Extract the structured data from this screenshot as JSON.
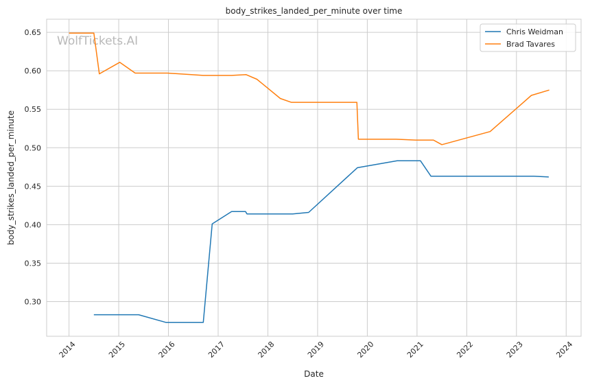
{
  "chart_data": {
    "type": "line",
    "title": "body_strikes_landed_per_minute over time",
    "xlabel": "Date",
    "ylabel": "body_strikes_landed_per_minute",
    "watermark": "WolfTickets.AI",
    "xlim": [
      2013.55,
      2024.3
    ],
    "ylim": [
      0.255,
      0.667
    ],
    "x_ticks": [
      2014,
      2015,
      2016,
      2017,
      2018,
      2019,
      2020,
      2021,
      2022,
      2023,
      2024
    ],
    "x_tick_labels": [
      "2014",
      "2015",
      "2016",
      "2017",
      "2018",
      "2019",
      "2020",
      "2021",
      "2022",
      "2023",
      "2024"
    ],
    "y_ticks": [
      0.3,
      0.35,
      0.4,
      0.45,
      0.5,
      0.55,
      0.6,
      0.65
    ],
    "y_tick_labels": [
      "0.30",
      "0.35",
      "0.40",
      "0.45",
      "0.50",
      "0.55",
      "0.60",
      "0.65"
    ],
    "grid": true,
    "legend_position": "top-right",
    "series": [
      {
        "name": "Chris Weidman",
        "color": "#1f77b4",
        "points": [
          [
            2014.5,
            0.283
          ],
          [
            2015.4,
            0.283
          ],
          [
            2015.95,
            0.273
          ],
          [
            2016.7,
            0.273
          ],
          [
            2016.88,
            0.401
          ],
          [
            2017.27,
            0.417
          ],
          [
            2017.55,
            0.417
          ],
          [
            2017.58,
            0.414
          ],
          [
            2018.5,
            0.414
          ],
          [
            2018.82,
            0.416
          ],
          [
            2019.8,
            0.474
          ],
          [
            2020.6,
            0.483
          ],
          [
            2021.07,
            0.483
          ],
          [
            2021.28,
            0.463
          ],
          [
            2023.0,
            0.463
          ],
          [
            2023.35,
            0.463
          ],
          [
            2023.65,
            0.462
          ]
        ]
      },
      {
        "name": "Brad Tavares",
        "color": "#ff7f0e",
        "points": [
          [
            2014.0,
            0.649
          ],
          [
            2014.3,
            0.649
          ],
          [
            2014.5,
            0.649
          ],
          [
            2014.61,
            0.596
          ],
          [
            2015.02,
            0.611
          ],
          [
            2015.33,
            0.597
          ],
          [
            2015.98,
            0.597
          ],
          [
            2016.7,
            0.594
          ],
          [
            2017.27,
            0.594
          ],
          [
            2017.56,
            0.595
          ],
          [
            2017.78,
            0.589
          ],
          [
            2018.25,
            0.564
          ],
          [
            2018.47,
            0.559
          ],
          [
            2019.79,
            0.559
          ],
          [
            2019.82,
            0.511
          ],
          [
            2020.58,
            0.511
          ],
          [
            2020.97,
            0.51
          ],
          [
            2021.33,
            0.51
          ],
          [
            2021.5,
            0.504
          ],
          [
            2022.47,
            0.521
          ],
          [
            2023.3,
            0.568
          ],
          [
            2023.66,
            0.575
          ]
        ]
      }
    ]
  }
}
